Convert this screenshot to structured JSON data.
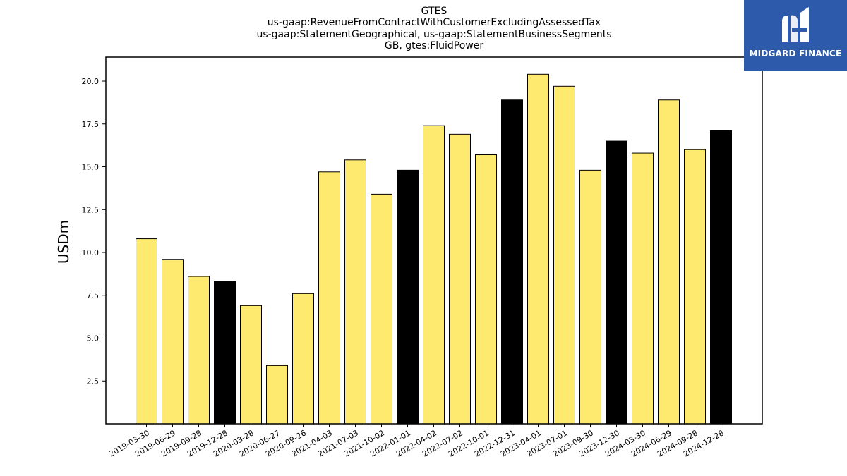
{
  "brand": {
    "name": "MIDGARD FINANCE",
    "logo_color": "#2d5aab",
    "logo_icon": "midgard-mark-icon"
  },
  "chart_data": {
    "type": "bar",
    "title_lines": [
      "GTES",
      "us-gaap:RevenueFromContractWithCustomerExcludingAssessedTax",
      "us-gaap:StatementGeographical, us-gaap:StatementBusinessSegments",
      "GB, gtes:FluidPower"
    ],
    "xlabel": "",
    "ylabel": "USDm",
    "ylim": [
      0,
      21.4
    ],
    "yticks": [
      "2.5",
      "5.0",
      "7.5",
      "10.0",
      "12.5",
      "15.0",
      "17.5",
      "20.0"
    ],
    "categories": [
      "2019-03-30",
      "2019-06-29",
      "2019-09-28",
      "2019-12-28",
      "2020-03-28",
      "2020-06-27",
      "2020-09-26",
      "2021-04-03",
      "2021-07-03",
      "2021-10-02",
      "2022-01-01",
      "2022-04-02",
      "2022-07-02",
      "2022-10-01",
      "2022-12-31",
      "2023-04-01",
      "2023-07-01",
      "2023-09-30",
      "2023-12-30",
      "2024-03-30",
      "2024-06-29",
      "2024-09-28",
      "2024-12-28"
    ],
    "values": [
      10.8,
      9.6,
      8.6,
      8.3,
      6.9,
      3.4,
      7.6,
      14.7,
      15.4,
      13.4,
      14.8,
      17.4,
      16.9,
      15.7,
      18.9,
      20.4,
      19.7,
      14.8,
      16.5,
      15.8,
      18.9,
      16.0,
      17.1
    ],
    "highlight": [
      false,
      false,
      false,
      true,
      false,
      false,
      false,
      false,
      false,
      false,
      true,
      false,
      false,
      false,
      true,
      false,
      false,
      false,
      true,
      false,
      false,
      false,
      true
    ],
    "colors": {
      "bar": "#ffea70",
      "highlight": "#000000",
      "edge": "#000000"
    },
    "grid": false,
    "legend": "none"
  }
}
